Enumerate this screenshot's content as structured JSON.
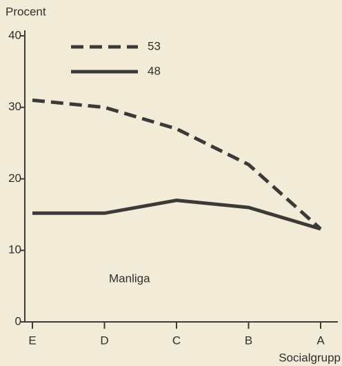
{
  "chart_data": {
    "type": "line",
    "y_label": "Procent",
    "x_label": "Socialgrupp",
    "annotation": "Manliga",
    "categories": [
      "E",
      "D",
      "C",
      "B",
      "A"
    ],
    "series": [
      {
        "name": "53",
        "color": "#3b3a38",
        "style": "dashed",
        "values": [
          31,
          30,
          27,
          22,
          13
        ]
      },
      {
        "name": "48",
        "color": "#3b3a38",
        "style": "solid",
        "values": [
          15.2,
          15.2,
          17,
          16,
          13
        ]
      }
    ],
    "ylim": [
      0,
      40
    ],
    "yticks": [
      0,
      10,
      20,
      30,
      40
    ],
    "grid": false
  }
}
